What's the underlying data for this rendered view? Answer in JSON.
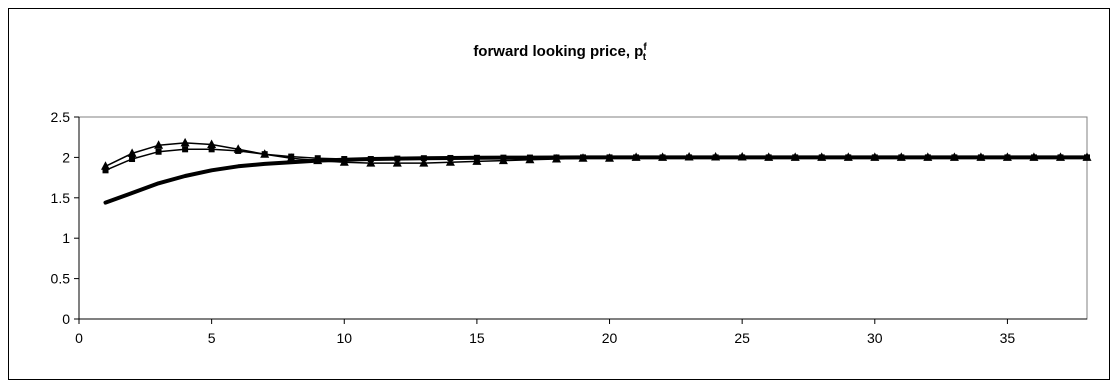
{
  "chart_data": {
    "type": "line",
    "title": {
      "main": "forward looking price, p",
      "sup": "f",
      "sub": "t"
    },
    "xlabel": "",
    "ylabel": "",
    "xlim": [
      0,
      38
    ],
    "ylim": [
      0,
      2.5
    ],
    "x_ticks": [
      0,
      5,
      10,
      15,
      20,
      25,
      30,
      35
    ],
    "y_ticks": [
      0,
      0.5,
      1,
      1.5,
      2,
      2.5
    ],
    "y_tick_labels": [
      "0",
      "0.5",
      "1",
      "1.5",
      "2",
      "2.5"
    ],
    "grid": false,
    "legend": "none",
    "plot_area_border_color": "#808080",
    "x": [
      1,
      2,
      3,
      4,
      5,
      6,
      7,
      8,
      9,
      10,
      11,
      12,
      13,
      14,
      15,
      16,
      17,
      18,
      19,
      20,
      21,
      22,
      23,
      24,
      25,
      26,
      27,
      28,
      29,
      30,
      31,
      32,
      33,
      34,
      35,
      36,
      37,
      38
    ],
    "series": [
      {
        "style": "thick-line",
        "color": "#000000",
        "values": [
          1.44,
          1.56,
          1.68,
          1.77,
          1.84,
          1.89,
          1.92,
          1.94,
          1.96,
          1.97,
          1.98,
          1.985,
          1.99,
          1.993,
          1.995,
          1.997,
          1.998,
          1.999,
          2.0,
          2.0,
          2.0,
          2.0,
          2.0,
          2.0,
          2.0,
          2.0,
          2.0,
          2.0,
          2.0,
          2.0,
          2.0,
          2.0,
          2.0,
          2.0,
          2.0,
          2.0,
          2.0,
          2.0
        ]
      },
      {
        "style": "line-square-markers",
        "color": "#000000",
        "values": [
          1.84,
          1.98,
          2.07,
          2.1,
          2.1,
          2.08,
          2.04,
          2.01,
          1.99,
          1.98,
          1.98,
          1.985,
          1.99,
          1.993,
          1.995,
          1.997,
          1.998,
          1.999,
          2.0,
          2.0,
          2.0,
          2.0,
          2.0,
          2.0,
          2.0,
          2.0,
          2.0,
          2.0,
          2.0,
          2.0,
          2.0,
          2.0,
          2.0,
          2.0,
          2.0,
          2.0,
          2.0,
          2.0
        ]
      },
      {
        "style": "line-triangle-markers",
        "color": "#000000",
        "values": [
          1.89,
          2.05,
          2.15,
          2.18,
          2.16,
          2.1,
          2.04,
          1.99,
          1.96,
          1.94,
          1.93,
          1.93,
          1.93,
          1.94,
          1.95,
          1.96,
          1.97,
          1.98,
          1.99,
          1.99,
          2.0,
          2.0,
          2.005,
          2.005,
          2.005,
          2.0,
          2.0,
          2.0,
          2.0,
          2.0,
          2.0,
          2.0,
          2.0,
          2.0,
          2.0,
          2.0,
          2.0,
          2.0
        ]
      }
    ]
  }
}
